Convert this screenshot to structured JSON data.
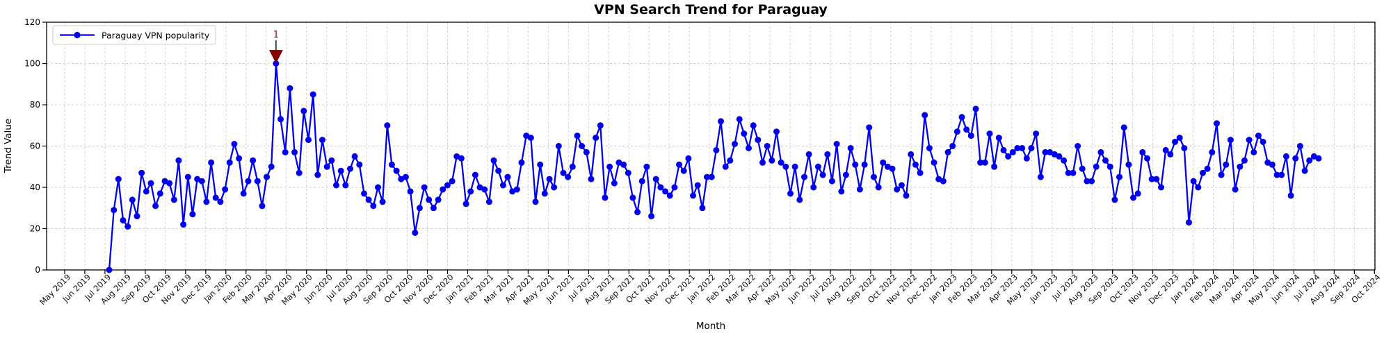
{
  "chart_data": {
    "type": "line",
    "title": "VPN Search Trend for Paraguay",
    "xlabel": "Month",
    "ylabel": "Trend Value",
    "ylim": [
      0,
      120
    ],
    "yticks": [
      0,
      20,
      40,
      60,
      80,
      100,
      120
    ],
    "grid": true,
    "grid_style": "dashed",
    "grid_color": "#cccccc",
    "legend_position": "upper left",
    "x_tick_labels": [
      "May 2019",
      "Jun 2019",
      "Jul 2019",
      "Aug 2019",
      "Sep 2019",
      "Oct 2019",
      "Nov 2019",
      "Dec 2019",
      "Jan 2020",
      "Feb 2020",
      "Mar 2020",
      "Apr 2020",
      "May 2020",
      "Jun 2020",
      "Jul 2020",
      "Aug 2020",
      "Sep 2020",
      "Oct 2020",
      "Nov 2020",
      "Dec 2020",
      "Jan 2021",
      "Feb 2021",
      "Mar 2021",
      "Apr 2021",
      "May 2021",
      "Jun 2021",
      "Jul 2021",
      "Aug 2021",
      "Sep 2021",
      "Oct 2021",
      "Nov 2021",
      "Dec 2021",
      "Jan 2022",
      "Feb 2022",
      "Mar 2022",
      "Apr 2022",
      "May 2022",
      "Jun 2022",
      "Jul 2022",
      "Aug 2022",
      "Sep 2022",
      "Oct 2022",
      "Nov 2022",
      "Dec 2022",
      "Jan 2023",
      "Feb 2023",
      "Mar 2023",
      "Apr 2023",
      "May 2023",
      "Jun 2023",
      "Jul 2023",
      "Aug 2023",
      "Sep 2023",
      "Oct 2023",
      "Nov 2023",
      "Dec 2023",
      "Jan 2024",
      "Feb 2024",
      "Mar 2024",
      "Apr 2024",
      "May 2024",
      "Jun 2024",
      "Jul 2024",
      "Aug 2024",
      "Sep 2024",
      "Oct 2024"
    ],
    "series": [
      {
        "name": "Paraguay VPN popularity",
        "color": "#0000ee",
        "marker": "circle",
        "frequency": "weekly",
        "start_week": "2019-07-07",
        "end_week": "2024-07-07",
        "n_points": 262,
        "values": [
          0,
          29,
          44,
          24,
          21,
          34,
          26,
          47,
          38,
          42,
          31,
          37,
          43,
          42,
          34,
          53,
          22,
          45,
          27,
          44,
          43,
          33,
          52,
          35,
          33,
          39,
          52,
          61,
          54,
          37,
          43,
          53,
          43,
          31,
          45,
          50,
          100,
          73,
          57,
          88,
          57,
          47,
          77,
          63,
          85,
          46,
          63,
          50,
          53,
          41,
          48,
          41,
          49,
          55,
          51,
          37,
          34,
          31,
          40,
          33,
          70,
          51,
          48,
          44,
          45,
          38,
          18,
          30,
          40,
          34,
          30,
          34,
          39,
          41,
          43,
          55,
          54,
          32,
          38,
          46,
          40,
          39,
          33,
          53,
          48,
          41,
          45,
          38,
          39,
          52,
          65,
          64,
          33,
          51,
          37,
          44,
          40,
          60,
          47,
          45,
          50,
          65,
          60,
          57,
          44,
          64,
          70,
          35,
          50,
          42,
          52,
          51,
          47,
          35,
          28,
          43,
          50,
          26,
          44,
          40,
          38,
          36,
          40,
          51,
          48,
          54,
          36,
          41,
          30,
          45,
          45,
          58,
          72,
          50,
          53,
          61,
          73,
          66,
          59,
          70,
          63,
          52,
          60,
          53,
          67,
          52,
          50,
          37,
          50,
          34,
          45,
          56,
          40,
          50,
          46,
          56,
          43,
          61,
          38,
          46,
          59,
          51,
          39,
          51,
          69,
          45,
          40,
          52,
          50,
          49,
          39,
          41,
          36,
          56,
          51,
          47,
          75,
          59,
          52,
          44,
          43,
          57,
          60,
          67,
          74,
          68,
          65,
          78,
          52,
          52,
          66,
          50,
          64,
          58,
          55,
          57,
          59,
          59,
          54,
          59,
          66,
          45,
          57,
          57,
          56,
          55,
          53,
          47,
          47,
          60,
          49,
          43,
          43,
          50,
          57,
          53,
          50,
          34,
          45,
          69,
          51,
          35,
          37,
          57,
          54,
          44,
          44,
          40,
          58,
          56,
          62,
          64,
          59,
          23,
          43,
          40,
          47,
          49,
          57,
          71,
          46,
          51,
          63,
          39,
          50,
          53,
          63,
          57,
          65,
          62,
          52,
          51,
          46,
          46,
          55,
          36,
          54,
          60,
          48,
          53,
          55,
          54
        ]
      }
    ],
    "annotations": [
      {
        "text": "1",
        "color": "#8b0000",
        "marker": "triangle-down",
        "week": "2020-03-15",
        "week_index": 36,
        "value": 100
      }
    ]
  }
}
